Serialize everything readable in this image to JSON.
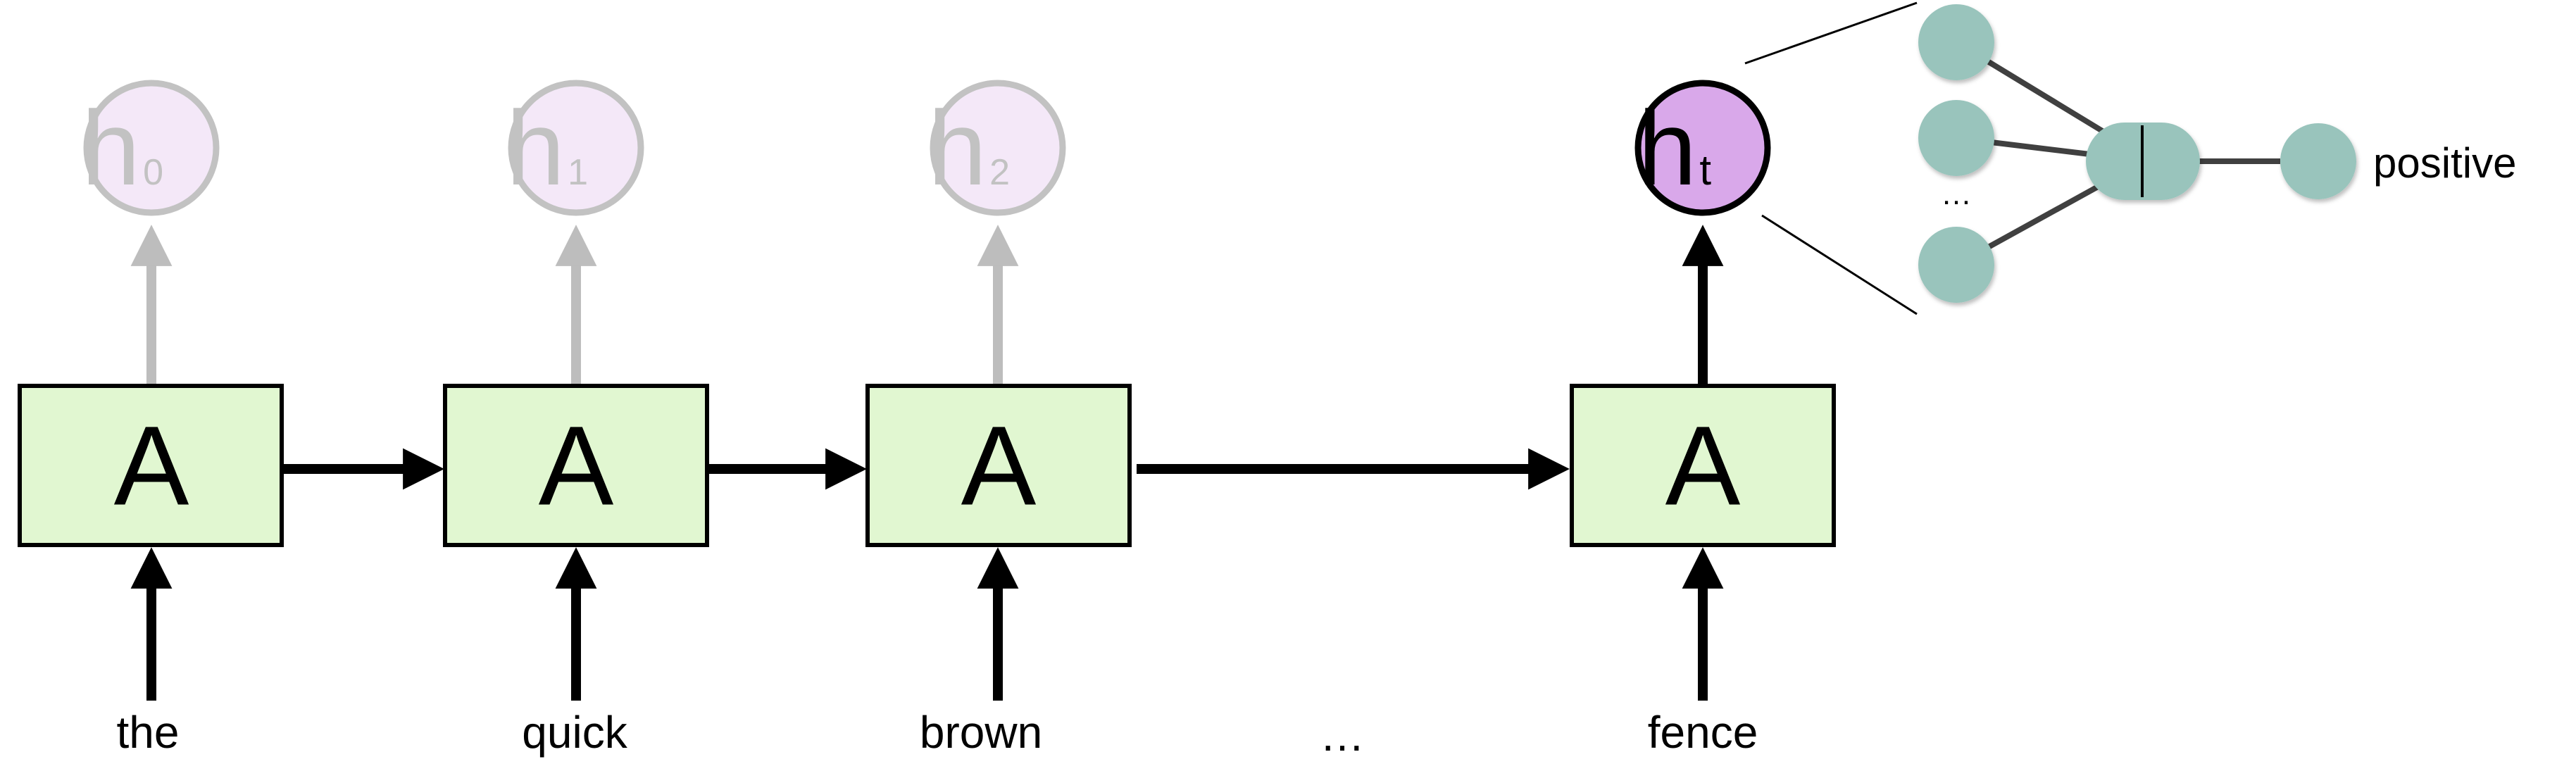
{
  "cells": [
    {
      "label": "A",
      "input": "the",
      "hidden": {
        "main": "h",
        "sub": "0"
      }
    },
    {
      "label": "A",
      "input": "quick",
      "hidden": {
        "main": "h",
        "sub": "1"
      }
    },
    {
      "label": "A",
      "input": "brown",
      "hidden": {
        "main": "h",
        "sub": "2"
      }
    },
    {
      "label": "A",
      "input": "fence",
      "hidden": {
        "main": "h",
        "sub": "t"
      }
    }
  ],
  "sequence_ellipsis": "…",
  "classifier": {
    "ellipsis": "…",
    "output_label": "positive"
  },
  "colors": {
    "cell_fill": "#e1f7d1",
    "hidden_faded_fill": "#f4e8f8",
    "hidden_faded_stroke": "#c2c2c2",
    "hidden_active_fill": "#d9a8ea",
    "node_fill": "#99c4bc",
    "gray_arrow": "#bdbdbd"
  }
}
